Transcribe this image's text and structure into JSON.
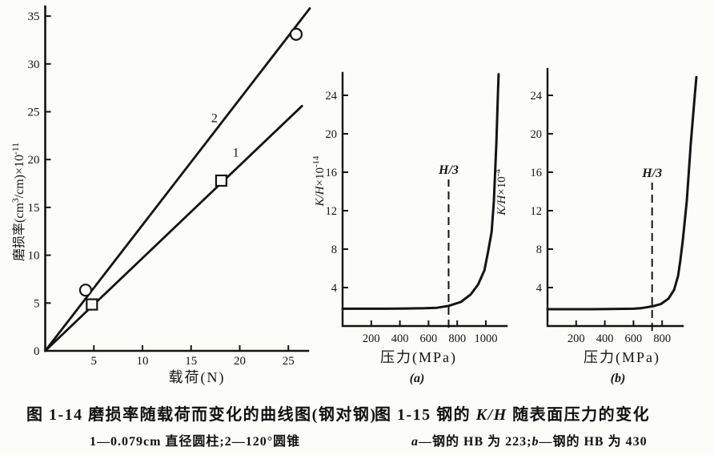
{
  "page": {
    "background": "#fcfcf9",
    "ink": "#141414"
  },
  "captions": {
    "fig14": {
      "title": "图 1-14  磨损率随载荷而变化的曲线图(钢对钢)",
      "sub": "1—0.079cm 直径圆柱;2—120°圆锥"
    },
    "fig15": {
      "t1": "图 1-15  钢的 ",
      "t2": "K/H",
      "t3": " 随表面压力的变化",
      "s1": "a",
      "s2": "—钢的 HB 为 223;",
      "s3": "b",
      "s4": "—钢的 HB 为 430"
    }
  },
  "chart_data": [
    {
      "type": "line",
      "title": "图 1-14 磨损率随载荷而变化的曲线图(钢对钢)",
      "xlabel": "载荷(N)",
      "ylabel": "磨损率(cm³/cm)×10⁻¹¹",
      "ylabel_parts": [
        {
          "t": "磨损率(cm"
        },
        {
          "t": "3",
          "sup": true
        },
        {
          "t": "/cm)×10"
        },
        {
          "t": "-11",
          "sup": true
        }
      ],
      "xlim": [
        0,
        27
      ],
      "ylim": [
        0,
        36
      ],
      "xticks": [
        5,
        10,
        15,
        20,
        25
      ],
      "yticks": [
        0,
        5,
        10,
        15,
        20,
        25,
        30,
        35
      ],
      "grid": false,
      "series": [
        {
          "name": "2—120°圆锥",
          "label": "2",
          "marker": "circle",
          "line": [
            [
              0,
              0
            ],
            [
              27.2,
              35.8
            ]
          ],
          "points": [
            [
              4.15,
              6.35
            ],
            [
              25.8,
              33.1
            ]
          ],
          "label_pos": [
            17.4,
            23.9
          ]
        },
        {
          "name": "1—0.079cm 直径圆柱",
          "label": "1",
          "marker": "square",
          "line": [
            [
              0,
              0
            ],
            [
              26.4,
              25.6
            ]
          ],
          "points": [
            [
              4.8,
              4.85
            ],
            [
              18.1,
              17.8
            ]
          ],
          "label_pos": [
            19.6,
            20.3
          ]
        }
      ]
    },
    {
      "type": "line",
      "title": "图 1-15(a) 钢的 K/H 随表面压力的变化 (a—钢的 HB 为 223)",
      "xlabel": "压力(MPa)",
      "ylabel": "K/H×10⁻¹⁴",
      "ylabel_parts": [
        {
          "t": "K/H",
          "i": true
        },
        {
          "t": "×10"
        },
        {
          "t": "-14",
          "sup": true
        }
      ],
      "sub_label": "(a)",
      "xlim": [
        0,
        1150
      ],
      "ylim": [
        0,
        26
      ],
      "xticks": [
        200,
        400,
        600,
        800,
        1000
      ],
      "yticks": [
        4,
        8,
        12,
        16,
        20,
        24
      ],
      "grid": false,
      "dashed_x": 740,
      "dashed_label": "H/3",
      "curve": [
        [
          0,
          1.8
        ],
        [
          300,
          1.8
        ],
        [
          575,
          1.85
        ],
        [
          660,
          1.9
        ],
        [
          740,
          2.1
        ],
        [
          825,
          2.5
        ],
        [
          895,
          3.3
        ],
        [
          945,
          4.3
        ],
        [
          990,
          5.8
        ],
        [
          1015,
          7.7
        ],
        [
          1040,
          9.8
        ],
        [
          1056,
          13
        ],
        [
          1073,
          19
        ],
        [
          1084,
          24
        ],
        [
          1089,
          26.2
        ]
      ]
    },
    {
      "type": "line",
      "title": "图 1-15(b) 钢的 K/H 随表面压力的变化 (b—钢的 HB 为 430)",
      "xlabel": "压力(MPa)",
      "ylabel": "K/H×10⁻⁴",
      "ylabel_parts": [
        {
          "t": "K/H",
          "i": true
        },
        {
          "t": "×10"
        },
        {
          "t": "-4",
          "sup": true
        }
      ],
      "sub_label": "(b)",
      "xlim": [
        0,
        950
      ],
      "ylim": [
        0,
        26
      ],
      "xticks": [
        200,
        400,
        600,
        800
      ],
      "yticks": [
        4,
        8,
        12,
        16,
        20,
        24
      ],
      "grid": false,
      "dashed_x": 730,
      "dashed_label": "H/3",
      "curve": [
        [
          0,
          1.75
        ],
        [
          300,
          1.75
        ],
        [
          600,
          1.8
        ],
        [
          650,
          1.85
        ],
        [
          733,
          2.05
        ],
        [
          793,
          2.3
        ],
        [
          844,
          2.85
        ],
        [
          883,
          3.75
        ],
        [
          911,
          5.2
        ],
        [
          927,
          6.8
        ],
        [
          944,
          8.9
        ],
        [
          972,
          13
        ],
        [
          1000,
          19
        ],
        [
          1028,
          24
        ],
        [
          1039,
          25.9
        ]
      ]
    }
  ]
}
